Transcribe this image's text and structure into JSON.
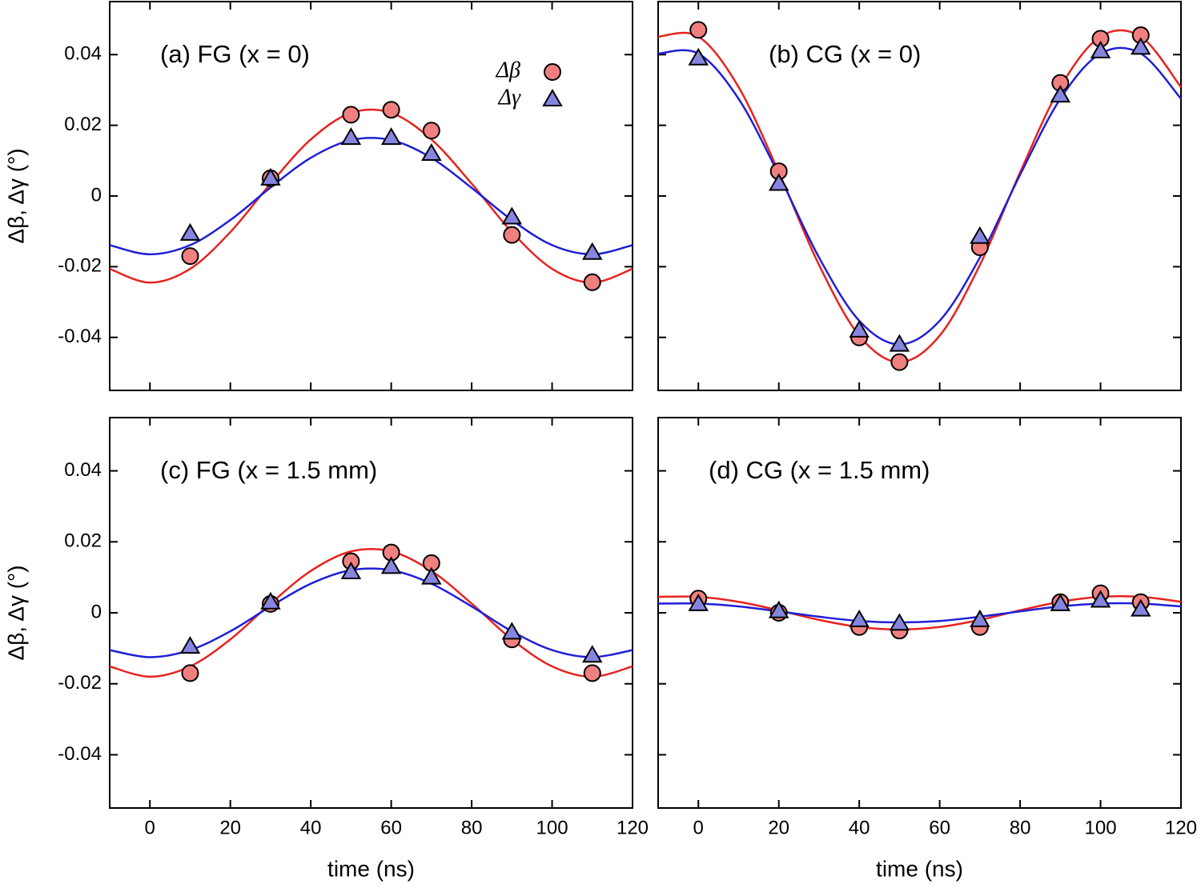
{
  "chart_data": [
    {
      "type": "scatter",
      "title": "(a) FG (x = 0)",
      "ylabel": "Δβ, Δγ (°)",
      "xlim": [
        -10,
        120
      ],
      "ylim": [
        -0.055,
        0.055
      ],
      "xticks": [
        0,
        20,
        40,
        60,
        80,
        100,
        120
      ],
      "yticks": [
        -0.04,
        -0.02,
        0,
        0.02,
        0.04
      ],
      "series": [
        {
          "name": "Δβ",
          "type": "scatter",
          "marker": "circle",
          "color": "#f08080",
          "x": [
            10,
            30,
            50,
            60,
            70,
            90,
            110
          ],
          "values": [
            -0.017,
            0.005,
            0.023,
            0.0244,
            0.0185,
            -0.011,
            -0.0244
          ]
        },
        {
          "name": "Δγ",
          "type": "scatter",
          "marker": "triangle",
          "color": "#8585e0",
          "x": [
            10,
            30,
            50,
            60,
            70,
            90,
            110
          ],
          "values": [
            -0.0106,
            0.005,
            0.0165,
            0.0165,
            0.012,
            -0.006,
            -0.016
          ]
        },
        {
          "type": "line",
          "color": "#e8231e",
          "x": [
            -10,
            0,
            10,
            20,
            30,
            40,
            50,
            60,
            70,
            80,
            90,
            100,
            110,
            120
          ],
          "values": [
            -0.0206,
            -0.0245,
            -0.0206,
            -0.0102,
            0.0035,
            0.016,
            0.0235,
            0.0235,
            0.016,
            0.0035,
            -0.0102,
            -0.0206,
            -0.0245,
            -0.0206
          ]
        },
        {
          "type": "line",
          "color": "#1f1fd6",
          "x": [
            -10,
            0,
            10,
            20,
            30,
            40,
            50,
            60,
            70,
            80,
            90,
            100,
            110,
            120
          ],
          "values": [
            -0.0139,
            -0.0165,
            -0.0139,
            -0.0068,
            0.0024,
            0.0108,
            0.0158,
            0.0158,
            0.0108,
            0.0023,
            -0.0068,
            -0.0139,
            -0.0165,
            -0.0139
          ]
        }
      ]
    },
    {
      "type": "scatter",
      "title": "(b) CG (x = 0)",
      "xlim": [
        -10,
        120
      ],
      "ylim": [
        -0.055,
        0.055
      ],
      "xticks": [
        0,
        20,
        40,
        60,
        80,
        100,
        120
      ],
      "yticks": [
        -0.04,
        -0.02,
        0,
        0.02,
        0.04
      ],
      "series": [
        {
          "type": "scatter",
          "marker": "circle",
          "color": "#f08080",
          "x": [
            0,
            20,
            40,
            50,
            70,
            90,
            100,
            110
          ],
          "values": [
            0.047,
            0.007,
            -0.04,
            -0.047,
            -0.0145,
            0.032,
            0.0445,
            0.0455
          ]
        },
        {
          "type": "scatter",
          "marker": "triangle",
          "color": "#8585e0",
          "x": [
            0,
            20,
            40,
            50,
            70,
            90,
            100,
            110
          ],
          "values": [
            0.039,
            0.0035,
            -0.038,
            -0.042,
            -0.0115,
            0.0285,
            0.041,
            0.042
          ]
        },
        {
          "type": "line",
          "color": "#e8231e",
          "x": [
            -10,
            0,
            10,
            20,
            30,
            40,
            50,
            60,
            70,
            80,
            90,
            100,
            110,
            120
          ],
          "values": [
            0.0451,
            0.0451,
            0.0308,
            0.0067,
            -0.0195,
            -0.0395,
            -0.047,
            -0.0395,
            -0.0195,
            0.0067,
            0.0308,
            0.0451,
            0.0451,
            0.0308
          ]
        },
        {
          "type": "line",
          "color": "#1f1fd6",
          "x": [
            -10,
            0,
            10,
            20,
            30,
            40,
            50,
            60,
            70,
            80,
            90,
            100,
            110,
            120
          ],
          "values": [
            0.0403,
            0.0403,
            0.0275,
            0.006,
            -0.0174,
            -0.0353,
            -0.042,
            -0.0353,
            -0.0174,
            0.006,
            0.0275,
            0.0403,
            0.0403,
            0.0275
          ]
        }
      ]
    },
    {
      "type": "scatter",
      "title": "(c) FG (x = 1.5 mm)",
      "ylabel": "Δβ, Δγ (°)",
      "xlabel": "time (ns)",
      "xlim": [
        -10,
        120
      ],
      "ylim": [
        -0.055,
        0.055
      ],
      "xticks": [
        0,
        20,
        40,
        60,
        80,
        100,
        120
      ],
      "yticks": [
        -0.04,
        -0.02,
        0,
        0.02,
        0.04
      ],
      "series": [
        {
          "type": "scatter",
          "marker": "circle",
          "color": "#f08080",
          "x": [
            10,
            30,
            50,
            60,
            70,
            90,
            110
          ],
          "values": [
            -0.017,
            0.0025,
            0.0145,
            0.017,
            0.014,
            -0.0075,
            -0.017
          ]
        },
        {
          "type": "scatter",
          "marker": "triangle",
          "color": "#8585e0",
          "x": [
            10,
            30,
            50,
            60,
            70,
            90,
            110
          ],
          "values": [
            -0.0095,
            0.003,
            0.0115,
            0.013,
            0.01,
            -0.0055,
            -0.012
          ]
        },
        {
          "type": "line",
          "color": "#e8231e",
          "x": [
            -10,
            0,
            10,
            20,
            30,
            40,
            50,
            60,
            70,
            80,
            90,
            100,
            110,
            120
          ],
          "values": [
            -0.0151,
            -0.018,
            -0.0151,
            -0.0075,
            0.0026,
            0.0118,
            0.0173,
            0.0173,
            0.0118,
            0.0026,
            -0.0075,
            -0.0151,
            -0.018,
            -0.0151
          ]
        },
        {
          "type": "line",
          "color": "#1f1fd6",
          "x": [
            -10,
            0,
            10,
            20,
            30,
            40,
            50,
            60,
            70,
            80,
            90,
            100,
            110,
            120
          ],
          "values": [
            -0.0105,
            -0.0125,
            -0.0105,
            -0.0052,
            0.0018,
            0.0082,
            0.012,
            0.012,
            0.0082,
            0.0018,
            -0.0052,
            -0.0105,
            -0.0125,
            -0.0105
          ]
        }
      ]
    },
    {
      "type": "scatter",
      "title": "(d) CG (x = 1.5 mm)",
      "xlabel": "time (ns)",
      "xlim": [
        -10,
        120
      ],
      "ylim": [
        -0.055,
        0.055
      ],
      "xticks": [
        0,
        20,
        40,
        60,
        80,
        100,
        120
      ],
      "yticks": [
        -0.04,
        -0.02,
        0,
        0.02,
        0.04
      ],
      "series": [
        {
          "type": "scatter",
          "marker": "circle",
          "color": "#f08080",
          "x": [
            0,
            20,
            40,
            50,
            70,
            90,
            100,
            110
          ],
          "values": [
            0.004,
            0.0,
            -0.004,
            -0.005,
            -0.004,
            0.003,
            0.0055,
            0.003
          ]
        },
        {
          "type": "scatter",
          "marker": "triangle",
          "color": "#8585e0",
          "x": [
            0,
            20,
            40,
            50,
            70,
            90,
            100,
            110
          ],
          "values": [
            0.0025,
            0.0005,
            -0.002,
            -0.003,
            -0.002,
            0.0025,
            0.0035,
            0.001
          ]
        },
        {
          "type": "line",
          "color": "#e8231e",
          "x": [
            -10,
            0,
            10,
            20,
            30,
            40,
            50,
            60,
            70,
            80,
            90,
            100,
            110,
            120
          ],
          "values": [
            0.0045,
            0.0045,
            0.0031,
            0.0007,
            -0.002,
            -0.004,
            -0.0047,
            -0.004,
            -0.002,
            0.0007,
            0.0031,
            0.0045,
            0.0045,
            0.0031
          ]
        },
        {
          "type": "line",
          "color": "#1f1fd6",
          "x": [
            -10,
            0,
            10,
            20,
            30,
            40,
            50,
            60,
            70,
            80,
            90,
            100,
            110,
            120
          ],
          "values": [
            0.0026,
            0.0026,
            0.0018,
            0.0004,
            -0.0011,
            -0.0023,
            -0.0027,
            -0.0023,
            -0.0011,
            0.0004,
            0.0018,
            0.0026,
            0.0026,
            0.0018
          ]
        }
      ]
    }
  ]
}
